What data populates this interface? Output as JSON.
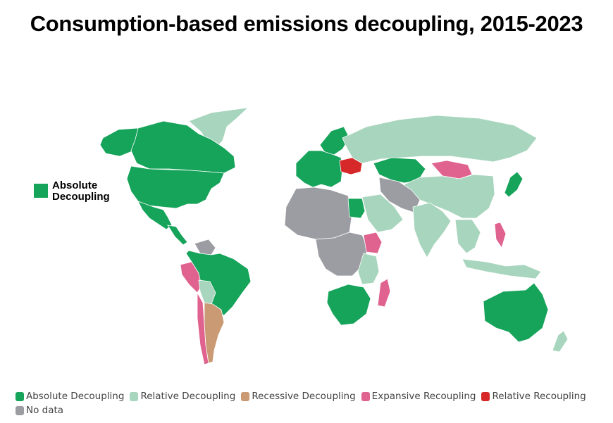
{
  "title": "Consumption-based emissions decoupling, 2015-2023",
  "callout": {
    "line1": "Absolute",
    "line2": "Decoupling",
    "color": "#16a35a"
  },
  "colors": {
    "absolute": "#16a35a",
    "relative": "#a8d5bd",
    "recessive": "#c99a74",
    "expansive": "#e0628f",
    "relative_recoupling": "#d62828",
    "nodata": "#9c9ca3"
  },
  "legend": [
    {
      "key": "absolute",
      "label": "Absolute Decoupling",
      "color": "#16a35a"
    },
    {
      "key": "relative",
      "label": "Relative Decoupling",
      "color": "#a8d5bd"
    },
    {
      "key": "recessive",
      "label": "Recessive Decoupling",
      "color": "#c99a74"
    },
    {
      "key": "expansive",
      "label": "Expansive Recoupling",
      "color": "#e0628f"
    },
    {
      "key": "relative_recoupling",
      "label": "Relative Recoupling",
      "color": "#d62828"
    },
    {
      "key": "nodata",
      "label": "No data",
      "color": "#9c9ca3"
    }
  ],
  "regions": [
    {
      "name": "canada",
      "category": "absolute"
    },
    {
      "name": "greenland",
      "category": "relative"
    },
    {
      "name": "usa",
      "category": "absolute"
    },
    {
      "name": "alaska",
      "category": "absolute"
    },
    {
      "name": "mexico",
      "category": "absolute"
    },
    {
      "name": "central-america",
      "category": "absolute"
    },
    {
      "name": "venezuela-guianas",
      "category": "nodata"
    },
    {
      "name": "brazil",
      "category": "absolute"
    },
    {
      "name": "peru",
      "category": "expansive"
    },
    {
      "name": "bolivia",
      "category": "relative"
    },
    {
      "name": "argentina",
      "category": "recessive"
    },
    {
      "name": "chile",
      "category": "expansive"
    },
    {
      "name": "western-europe",
      "category": "absolute"
    },
    {
      "name": "scandinavia",
      "category": "absolute"
    },
    {
      "name": "ukraine",
      "category": "relative_recoupling"
    },
    {
      "name": "russia",
      "category": "relative"
    },
    {
      "name": "kazakhstan",
      "category": "absolute"
    },
    {
      "name": "mongolia",
      "category": "expansive"
    },
    {
      "name": "china",
      "category": "relative"
    },
    {
      "name": "japan",
      "category": "absolute"
    },
    {
      "name": "india",
      "category": "relative"
    },
    {
      "name": "southeast-asia",
      "category": "relative"
    },
    {
      "name": "philippines",
      "category": "expansive"
    },
    {
      "name": "indonesia",
      "category": "relative"
    },
    {
      "name": "australia",
      "category": "absolute"
    },
    {
      "name": "new-zealand",
      "category": "relative"
    },
    {
      "name": "north-africa",
      "category": "nodata"
    },
    {
      "name": "egypt",
      "category": "absolute"
    },
    {
      "name": "arabia",
      "category": "relative"
    },
    {
      "name": "central-africa",
      "category": "nodata"
    },
    {
      "name": "ethiopia",
      "category": "expansive"
    },
    {
      "name": "east-africa",
      "category": "relative"
    },
    {
      "name": "southern-africa",
      "category": "absolute"
    },
    {
      "name": "madagascar",
      "category": "expansive"
    },
    {
      "name": "middle-east",
      "category": "nodata"
    }
  ]
}
